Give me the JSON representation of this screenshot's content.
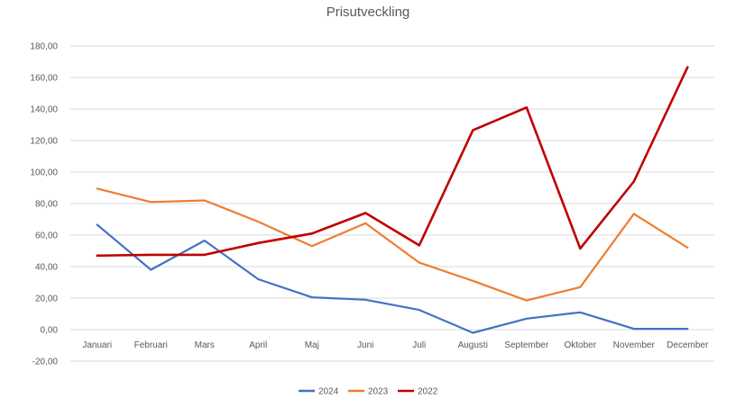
{
  "chart_data": {
    "type": "line",
    "title": "Prisutveckling",
    "xlabel": "",
    "ylabel": "",
    "categories": [
      "Januari",
      "Februari",
      "Mars",
      "April",
      "Maj",
      "Juni",
      "Juli",
      "Augusti",
      "September",
      "Oktober",
      "November",
      "December"
    ],
    "ylim": [
      -20,
      180
    ],
    "yticks": [
      "-20,00",
      "0,00",
      "20,00",
      "40,00",
      "60,00",
      "80,00",
      "100,00",
      "120,00",
      "140,00",
      "160,00",
      "180,00"
    ],
    "ytick_values": [
      -20,
      0,
      20,
      40,
      60,
      80,
      100,
      120,
      140,
      160,
      180
    ],
    "grid": true,
    "legend_position": "bottom",
    "series": [
      {
        "name": "2024",
        "color": "#4472C4",
        "values": [
          66.5,
          38,
          56.5,
          32,
          20.5,
          19,
          12.5,
          -2,
          7,
          11,
          0.5,
          0.5
        ]
      },
      {
        "name": "2023",
        "color": "#ED7D31",
        "values": [
          89.5,
          81,
          82,
          68.5,
          53,
          67.5,
          42.5,
          31,
          18.5,
          27,
          73.5,
          52
        ]
      },
      {
        "name": "2022",
        "color": "#C00000",
        "values": [
          47,
          47.5,
          47.5,
          55,
          61,
          74,
          53.5,
          126.5,
          141,
          51.5,
          94,
          166.5
        ]
      }
    ]
  }
}
